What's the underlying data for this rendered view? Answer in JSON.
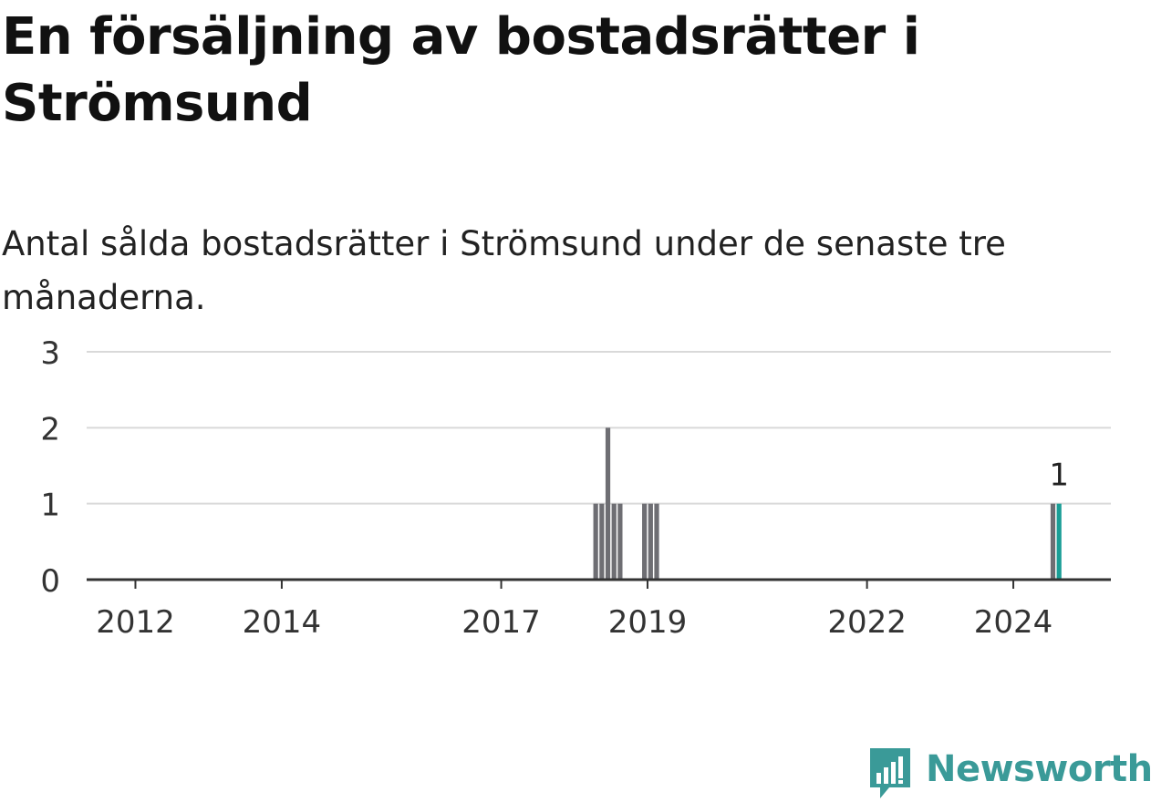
{
  "title": "En försäljning av bostadsrätter i Strömsund",
  "subtitle": "Antal sålda bostadsrätter i Strömsund under de senaste tre månaderna.",
  "brand": {
    "name": "Newsworthy",
    "color": "#3a9a98"
  },
  "colors": {
    "bar": "#6e6e73",
    "highlight": "#1a9e96",
    "grid": "#d9d9d9",
    "axis": "#333333"
  },
  "chart_data": {
    "type": "bar",
    "ylim": [
      0,
      3
    ],
    "yticks": [
      "0",
      "1",
      "2",
      "3"
    ],
    "xticks": [
      {
        "label": "2012",
        "date": "2012-01"
      },
      {
        "label": "2014",
        "date": "2014-01"
      },
      {
        "label": "2017",
        "date": "2017-01"
      },
      {
        "label": "2019",
        "date": "2019-01"
      },
      {
        "label": "2022",
        "date": "2022-01"
      },
      {
        "label": "2024",
        "date": "2024-01"
      }
    ],
    "x_range": [
      "2011-05",
      "2025-05"
    ],
    "series": [
      {
        "values": [
          {
            "date": "2018-04",
            "value": 1
          },
          {
            "date": "2018-05",
            "value": 1
          },
          {
            "date": "2018-06",
            "value": 2
          },
          {
            "date": "2018-07",
            "value": 1
          },
          {
            "date": "2018-08",
            "value": 1
          },
          {
            "date": "2018-12",
            "value": 1
          },
          {
            "date": "2019-01",
            "value": 1
          },
          {
            "date": "2019-02",
            "value": 1
          },
          {
            "date": "2024-07",
            "value": 1
          },
          {
            "date": "2024-08",
            "value": 1,
            "highlight": true,
            "label": "1"
          }
        ]
      }
    ],
    "grid": true
  }
}
